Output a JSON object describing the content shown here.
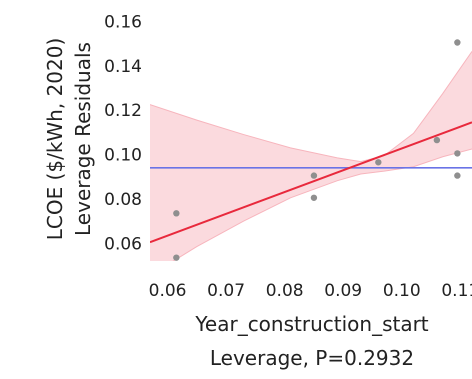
{
  "chart_data": {
    "type": "scatter",
    "ylabel_lines": [
      "LCOE ($/kWh, 2020)",
      "Leverage Residuals"
    ],
    "xlabel": "Year_construction_start",
    "subtitle": "Leverage, P=0.2932",
    "xlim": [
      0.057,
      0.112
    ],
    "ylim": [
      0.052,
      0.162
    ],
    "x_ticks": [
      0.06,
      0.07,
      0.08,
      0.09,
      0.1,
      0.11
    ],
    "x_tick_labels": [
      "0.06",
      "0.07",
      "0.08",
      "0.09",
      "0.10",
      "0.11"
    ],
    "y_ticks": [
      0.06,
      0.08,
      0.1,
      0.12,
      0.14,
      0.16
    ],
    "y_tick_labels": [
      "0.06",
      "0.08",
      "0.10",
      "0.12",
      "0.14",
      "0.16"
    ],
    "points": [
      {
        "x": 0.0615,
        "y": 0.0735
      },
      {
        "x": 0.0615,
        "y": 0.0535
      },
      {
        "x": 0.085,
        "y": 0.0905
      },
      {
        "x": 0.085,
        "y": 0.0805
      },
      {
        "x": 0.096,
        "y": 0.0965
      },
      {
        "x": 0.106,
        "y": 0.1065
      },
      {
        "x": 0.1095,
        "y": 0.1505
      },
      {
        "x": 0.1095,
        "y": 0.1005
      },
      {
        "x": 0.1095,
        "y": 0.0905
      }
    ],
    "fit_line": {
      "x": [
        0.057,
        0.112
      ],
      "y": [
        0.0605,
        0.1145
      ],
      "color": "#e8293c"
    },
    "mean_line": {
      "y": 0.094,
      "color": "#6a73e6"
    },
    "confidence_band": {
      "color": "#f7b5bd",
      "x": [
        0.057,
        0.065,
        0.073,
        0.081,
        0.089,
        0.093,
        0.097,
        0.102,
        0.107,
        0.112
      ],
      "upper": [
        0.1225,
        0.1155,
        0.109,
        0.103,
        0.0985,
        0.0968,
        0.0995,
        0.1095,
        0.1275,
        0.1465
      ],
      "lower": [
        0.0455,
        0.0585,
        0.07,
        0.0805,
        0.0882,
        0.0912,
        0.0925,
        0.0945,
        0.099,
        0.1025
      ]
    },
    "point_color": "#8f8f8f",
    "grid": false
  }
}
